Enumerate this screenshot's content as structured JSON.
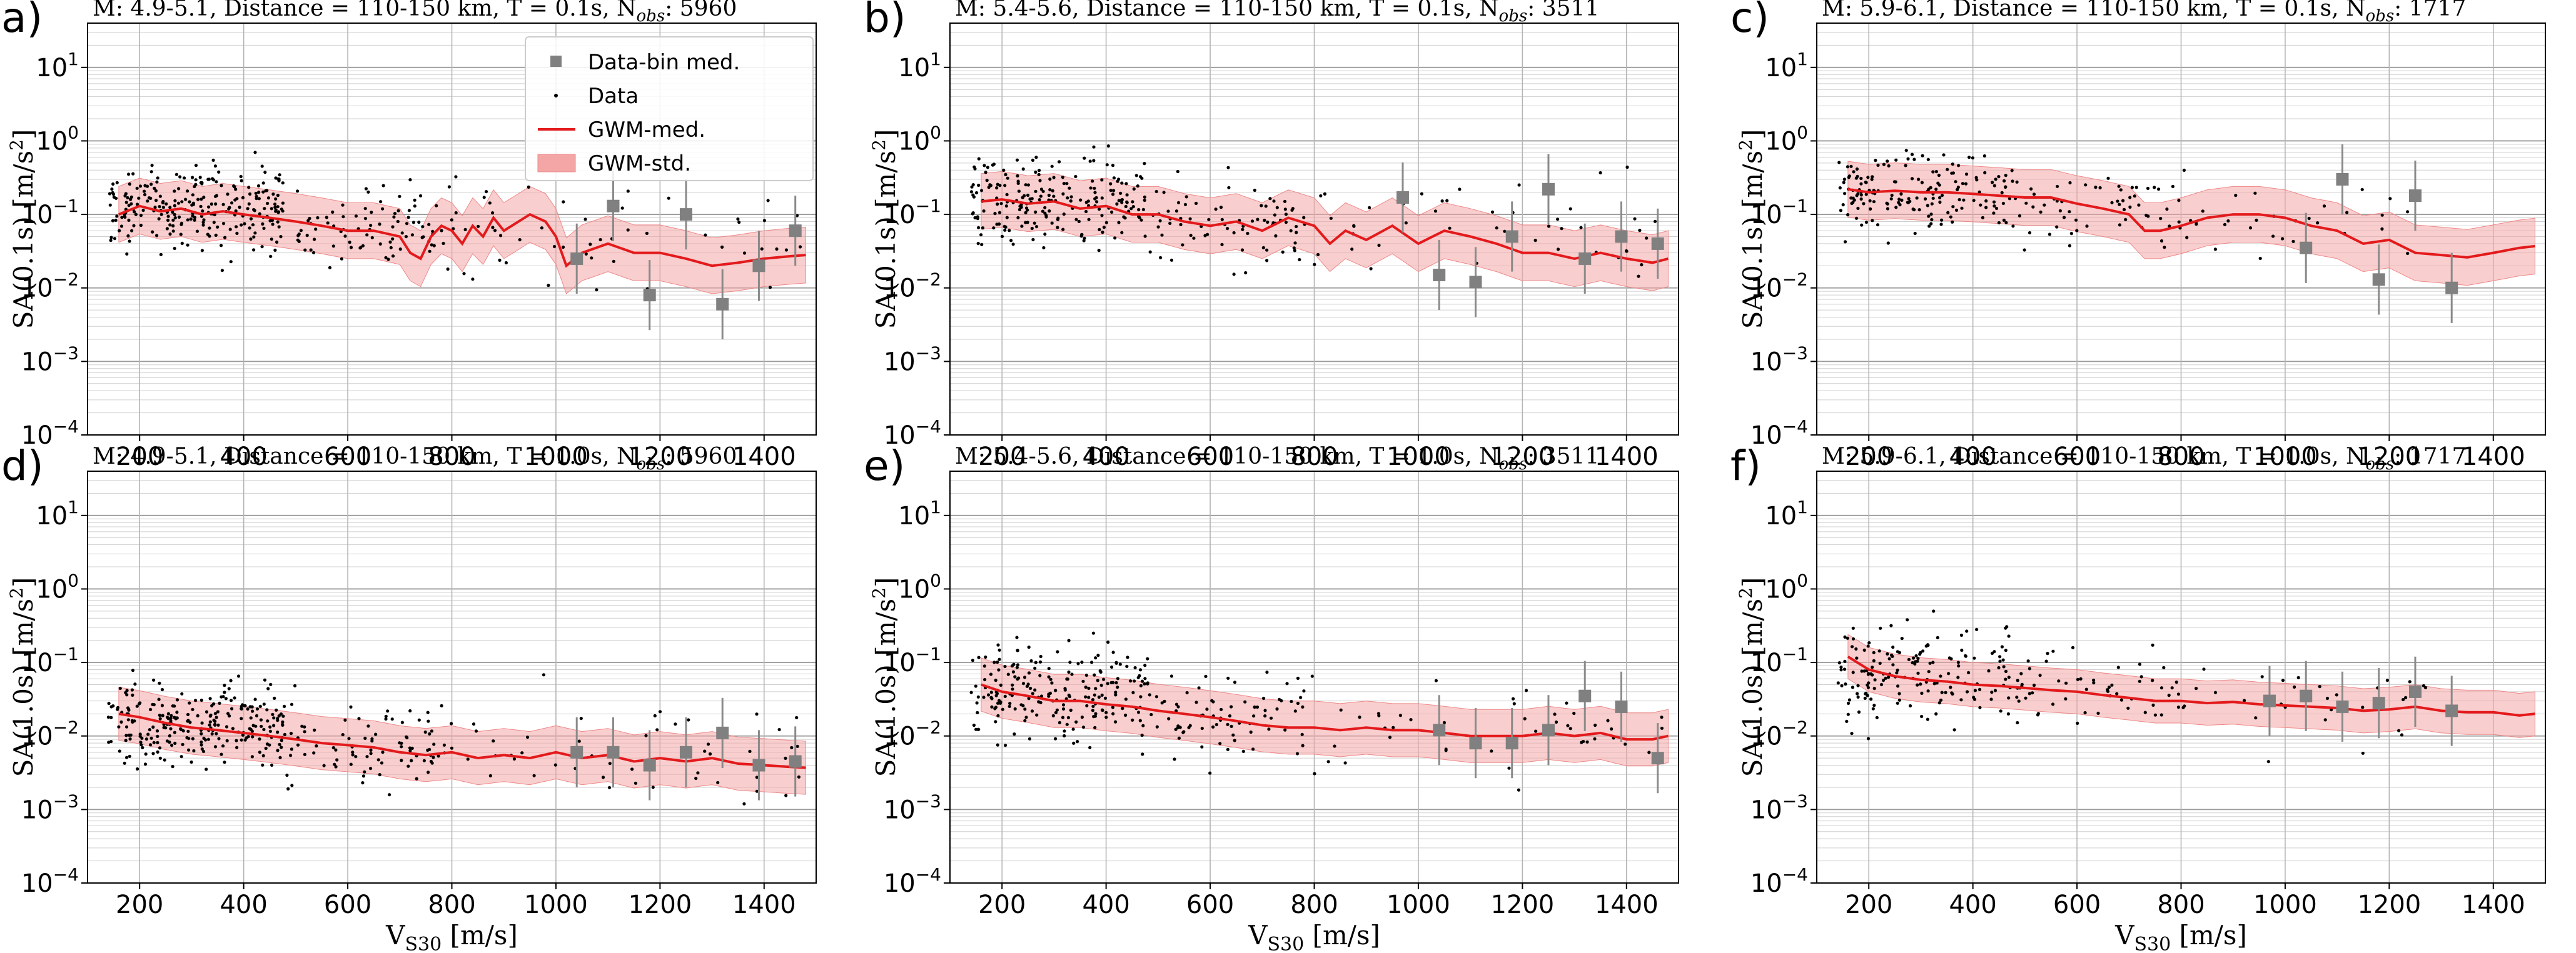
{
  "figure": {
    "legend": {
      "items": [
        {
          "label": "Data-bin med.",
          "kind": "square",
          "color": "#808080"
        },
        {
          "label": "Data",
          "kind": "dot",
          "color": "#000000"
        },
        {
          "label": "GWM-med.",
          "kind": "line",
          "color": "#e31a1c"
        },
        {
          "label": "GWM-std.",
          "kind": "band",
          "color": "#f4a6a6"
        }
      ],
      "placement": "upper-right of panel a"
    },
    "colors": {
      "data": "#000000",
      "bin_median": "#808080",
      "gwm_median": "#e31a1c",
      "gwm_std": "#f4a6a6",
      "grid": "#b0b0b0"
    }
  },
  "chart_data": [
    {
      "id": "a",
      "letter": "a)",
      "type": "scatter",
      "title": "M: 4.9-5.1,  Distance = 110-150 km, T = 0.1s, N",
      "title_sub": "obs",
      "title_tail": ": 5960",
      "xlabel": "",
      "ylabel": "SA(0.1s) [m/s²]",
      "xlim": [
        100,
        1500
      ],
      "ylim": [
        0.0001,
        40
      ],
      "yscale": "log",
      "grid": true,
      "n_obs": 5960,
      "xticks": [
        200,
        400,
        600,
        800,
        1000,
        1200,
        1400
      ],
      "data_clusters": [
        {
          "x_range": [
            140,
            480
          ],
          "y_median": 0.12,
          "spread": 0.28,
          "n": 260
        },
        {
          "x_range": [
            480,
            800
          ],
          "y_median": 0.07,
          "spread": 0.3,
          "n": 90
        },
        {
          "x_range": [
            800,
            1480
          ],
          "y_median": 0.06,
          "spread": 0.38,
          "n": 50
        }
      ],
      "gwm_median": [
        [
          160,
          0.1
        ],
        [
          200,
          0.13
        ],
        [
          240,
          0.11
        ],
        [
          280,
          0.12
        ],
        [
          320,
          0.1
        ],
        [
          360,
          0.11
        ],
        [
          400,
          0.1
        ],
        [
          450,
          0.09
        ],
        [
          500,
          0.08
        ],
        [
          550,
          0.07
        ],
        [
          600,
          0.06
        ],
        [
          650,
          0.06
        ],
        [
          700,
          0.05
        ],
        [
          720,
          0.03
        ],
        [
          740,
          0.025
        ],
        [
          760,
          0.05
        ],
        [
          780,
          0.07
        ],
        [
          800,
          0.06
        ],
        [
          820,
          0.04
        ],
        [
          840,
          0.07
        ],
        [
          860,
          0.05
        ],
        [
          880,
          0.09
        ],
        [
          900,
          0.06
        ],
        [
          950,
          0.1
        ],
        [
          980,
          0.08
        ],
        [
          1000,
          0.05
        ],
        [
          1020,
          0.02
        ],
        [
          1050,
          0.03
        ],
        [
          1100,
          0.04
        ],
        [
          1150,
          0.03
        ],
        [
          1200,
          0.03
        ],
        [
          1250,
          0.025
        ],
        [
          1300,
          0.02
        ],
        [
          1350,
          0.022
        ],
        [
          1400,
          0.025
        ],
        [
          1450,
          0.027
        ],
        [
          1480,
          0.028
        ]
      ],
      "gwm_std_ratio": 2.4,
      "bin_medians": [
        [
          1040,
          0.025
        ],
        [
          1110,
          0.13
        ],
        [
          1180,
          0.008
        ],
        [
          1250,
          0.1
        ],
        [
          1320,
          0.006
        ],
        [
          1390,
          0.02
        ],
        [
          1460,
          0.06
        ]
      ]
    },
    {
      "id": "b",
      "letter": "b)",
      "type": "scatter",
      "title": "M: 5.4-5.6,  Distance = 110-150 km, T = 0.1s, N",
      "title_sub": "obs",
      "title_tail": ": 3511",
      "xlabel": "",
      "ylabel": "SA(0.1s) [m/s²]",
      "xlim": [
        100,
        1500
      ],
      "ylim": [
        0.0001,
        40
      ],
      "yscale": "log",
      "grid": true,
      "n_obs": 3511,
      "xticks": [
        200,
        400,
        600,
        800,
        1000,
        1200,
        1400
      ],
      "data_clusters": [
        {
          "x_range": [
            140,
            480
          ],
          "y_median": 0.16,
          "spread": 0.3,
          "n": 220
        },
        {
          "x_range": [
            480,
            800
          ],
          "y_median": 0.08,
          "spread": 0.3,
          "n": 80
        },
        {
          "x_range": [
            800,
            1480
          ],
          "y_median": 0.06,
          "spread": 0.36,
          "n": 45
        }
      ],
      "gwm_median": [
        [
          160,
          0.15
        ],
        [
          200,
          0.16
        ],
        [
          250,
          0.14
        ],
        [
          300,
          0.15
        ],
        [
          350,
          0.12
        ],
        [
          400,
          0.13
        ],
        [
          450,
          0.1
        ],
        [
          500,
          0.1
        ],
        [
          550,
          0.08
        ],
        [
          600,
          0.07
        ],
        [
          650,
          0.08
        ],
        [
          700,
          0.06
        ],
        [
          750,
          0.09
        ],
        [
          800,
          0.07
        ],
        [
          830,
          0.04
        ],
        [
          860,
          0.06
        ],
        [
          900,
          0.045
        ],
        [
          950,
          0.07
        ],
        [
          1000,
          0.04
        ],
        [
          1050,
          0.06
        ],
        [
          1100,
          0.05
        ],
        [
          1150,
          0.04
        ],
        [
          1200,
          0.03
        ],
        [
          1250,
          0.03
        ],
        [
          1300,
          0.025
        ],
        [
          1350,
          0.03
        ],
        [
          1400,
          0.025
        ],
        [
          1450,
          0.022
        ],
        [
          1480,
          0.025
        ]
      ],
      "gwm_std_ratio": 2.4,
      "bin_medians": [
        [
          970,
          0.17
        ],
        [
          1040,
          0.015
        ],
        [
          1110,
          0.012
        ],
        [
          1180,
          0.05
        ],
        [
          1250,
          0.22
        ],
        [
          1320,
          0.025
        ],
        [
          1390,
          0.05
        ],
        [
          1460,
          0.04
        ]
      ]
    },
    {
      "id": "c",
      "letter": "c)",
      "type": "scatter",
      "title": "M: 5.9-6.1,  Distance = 110-150 km, T = 0.1s, N",
      "title_sub": "obs",
      "title_tail": ": 1717",
      "xlabel": "",
      "ylabel": "SA(0.1s) [m/s²]",
      "xlim": [
        100,
        1500
      ],
      "ylim": [
        0.0001,
        40
      ],
      "yscale": "log",
      "grid": true,
      "n_obs": 1717,
      "xticks": [
        200,
        400,
        600,
        800,
        1000,
        1200,
        1400
      ],
      "data_clusters": [
        {
          "x_range": [
            140,
            480
          ],
          "y_median": 0.2,
          "spread": 0.27,
          "n": 170
        },
        {
          "x_range": [
            480,
            800
          ],
          "y_median": 0.12,
          "spread": 0.28,
          "n": 60
        },
        {
          "x_range": [
            800,
            1300
          ],
          "y_median": 0.09,
          "spread": 0.3,
          "n": 30
        }
      ],
      "gwm_median": [
        [
          160,
          0.22
        ],
        [
          200,
          0.2
        ],
        [
          250,
          0.21
        ],
        [
          300,
          0.2
        ],
        [
          350,
          0.2
        ],
        [
          400,
          0.19
        ],
        [
          450,
          0.18
        ],
        [
          500,
          0.17
        ],
        [
          550,
          0.17
        ],
        [
          600,
          0.14
        ],
        [
          650,
          0.12
        ],
        [
          700,
          0.1
        ],
        [
          730,
          0.06
        ],
        [
          760,
          0.06
        ],
        [
          800,
          0.07
        ],
        [
          850,
          0.09
        ],
        [
          900,
          0.1
        ],
        [
          950,
          0.1
        ],
        [
          1000,
          0.09
        ],
        [
          1050,
          0.07
        ],
        [
          1100,
          0.06
        ],
        [
          1150,
          0.04
        ],
        [
          1200,
          0.045
        ],
        [
          1250,
          0.03
        ],
        [
          1300,
          0.028
        ],
        [
          1350,
          0.026
        ],
        [
          1400,
          0.03
        ],
        [
          1450,
          0.035
        ],
        [
          1480,
          0.037
        ]
      ],
      "gwm_std_ratio": 2.4,
      "bin_medians": [
        [
          1040,
          0.035
        ],
        [
          1110,
          0.3
        ],
        [
          1180,
          0.013
        ],
        [
          1250,
          0.18
        ],
        [
          1320,
          0.01
        ]
      ]
    },
    {
      "id": "d",
      "letter": "d)",
      "type": "scatter",
      "title": "M: 4.9-5.1,  Distance = 110-150 km, T = 1.0s, N",
      "title_sub": "obs",
      "title_tail": ": 5960",
      "xlabel": "V_S30 [m/s]",
      "ylabel": "SA(1.0s) [m/s²]",
      "xlim": [
        100,
        1500
      ],
      "ylim": [
        0.0001,
        40
      ],
      "yscale": "log",
      "grid": true,
      "n_obs": 5960,
      "xticks": [
        200,
        400,
        600,
        800,
        1000,
        1200,
        1400
      ],
      "data_clusters": [
        {
          "x_range": [
            140,
            480
          ],
          "y_median": 0.015,
          "spread": 0.3,
          "n": 260
        },
        {
          "x_range": [
            480,
            800
          ],
          "y_median": 0.008,
          "spread": 0.3,
          "n": 90
        },
        {
          "x_range": [
            800,
            1480
          ],
          "y_median": 0.006,
          "spread": 0.35,
          "n": 50
        }
      ],
      "gwm_median": [
        [
          160,
          0.02
        ],
        [
          200,
          0.018
        ],
        [
          250,
          0.015
        ],
        [
          300,
          0.013
        ],
        [
          350,
          0.012
        ],
        [
          400,
          0.011
        ],
        [
          450,
          0.01
        ],
        [
          500,
          0.009
        ],
        [
          550,
          0.008
        ],
        [
          600,
          0.0075
        ],
        [
          650,
          0.007
        ],
        [
          700,
          0.006
        ],
        [
          750,
          0.0055
        ],
        [
          800,
          0.006
        ],
        [
          850,
          0.005
        ],
        [
          900,
          0.0055
        ],
        [
          950,
          0.005
        ],
        [
          1000,
          0.006
        ],
        [
          1050,
          0.005
        ],
        [
          1100,
          0.0055
        ],
        [
          1150,
          0.0045
        ],
        [
          1200,
          0.005
        ],
        [
          1250,
          0.0045
        ],
        [
          1300,
          0.005
        ],
        [
          1350,
          0.0042
        ],
        [
          1400,
          0.004
        ],
        [
          1450,
          0.0038
        ],
        [
          1480,
          0.0037
        ]
      ],
      "gwm_std_ratio": 2.3,
      "bin_medians": [
        [
          1040,
          0.006
        ],
        [
          1110,
          0.006
        ],
        [
          1180,
          0.004
        ],
        [
          1250,
          0.006
        ],
        [
          1320,
          0.011
        ],
        [
          1390,
          0.004
        ],
        [
          1460,
          0.0045
        ]
      ]
    },
    {
      "id": "e",
      "letter": "e)",
      "type": "scatter",
      "title": "M: 5.4-5.6,  Distance = 110-150 km, T = 1.0s, N",
      "title_sub": "obs",
      "title_tail": ": 3511",
      "xlabel": "V_S30 [m/s]",
      "ylabel": "SA(1.0s) [m/s²]",
      "xlim": [
        100,
        1500
      ],
      "ylim": [
        0.0001,
        40
      ],
      "yscale": "log",
      "grid": true,
      "n_obs": 3511,
      "xticks": [
        200,
        400,
        600,
        800,
        1000,
        1200,
        1400
      ],
      "data_clusters": [
        {
          "x_range": [
            140,
            480
          ],
          "y_median": 0.04,
          "spread": 0.32,
          "n": 220
        },
        {
          "x_range": [
            480,
            800
          ],
          "y_median": 0.02,
          "spread": 0.3,
          "n": 80
        },
        {
          "x_range": [
            800,
            1480
          ],
          "y_median": 0.012,
          "spread": 0.3,
          "n": 45
        }
      ],
      "gwm_median": [
        [
          160,
          0.05
        ],
        [
          200,
          0.04
        ],
        [
          250,
          0.035
        ],
        [
          300,
          0.03
        ],
        [
          350,
          0.03
        ],
        [
          400,
          0.027
        ],
        [
          450,
          0.025
        ],
        [
          500,
          0.022
        ],
        [
          550,
          0.02
        ],
        [
          600,
          0.018
        ],
        [
          650,
          0.016
        ],
        [
          700,
          0.014
        ],
        [
          750,
          0.013
        ],
        [
          800,
          0.013
        ],
        [
          850,
          0.012
        ],
        [
          900,
          0.013
        ],
        [
          950,
          0.012
        ],
        [
          1000,
          0.012
        ],
        [
          1050,
          0.011
        ],
        [
          1100,
          0.01
        ],
        [
          1150,
          0.01
        ],
        [
          1200,
          0.01
        ],
        [
          1250,
          0.011
        ],
        [
          1300,
          0.01
        ],
        [
          1350,
          0.011
        ],
        [
          1400,
          0.009
        ],
        [
          1450,
          0.009
        ],
        [
          1480,
          0.01
        ]
      ],
      "gwm_std_ratio": 2.3,
      "bin_medians": [
        [
          1040,
          0.012
        ],
        [
          1110,
          0.008
        ],
        [
          1180,
          0.008
        ],
        [
          1250,
          0.012
        ],
        [
          1320,
          0.035
        ],
        [
          1390,
          0.025
        ],
        [
          1460,
          0.005
        ]
      ]
    },
    {
      "id": "f",
      "letter": "f)",
      "type": "scatter",
      "title": "M: 5.9-6.1,  Distance = 110-150 km, T = 1.0s, N",
      "title_sub": "obs",
      "title_tail": ": 1717",
      "xlabel": "V_S30 [m/s]",
      "ylabel": "SA(1.0s) [m/s²]",
      "xlim": [
        100,
        1500
      ],
      "ylim": [
        0.0001,
        40
      ],
      "yscale": "log",
      "grid": true,
      "n_obs": 1717,
      "xticks": [
        200,
        400,
        600,
        800,
        1000,
        1200,
        1400
      ],
      "data_clusters": [
        {
          "x_range": [
            140,
            480
          ],
          "y_median": 0.07,
          "spread": 0.3,
          "n": 170
        },
        {
          "x_range": [
            480,
            800
          ],
          "y_median": 0.04,
          "spread": 0.28,
          "n": 60
        },
        {
          "x_range": [
            800,
            1300
          ],
          "y_median": 0.03,
          "spread": 0.3,
          "n": 30
        }
      ],
      "gwm_median": [
        [
          160,
          0.12
        ],
        [
          200,
          0.08
        ],
        [
          250,
          0.065
        ],
        [
          300,
          0.058
        ],
        [
          350,
          0.055
        ],
        [
          400,
          0.05
        ],
        [
          450,
          0.048
        ],
        [
          500,
          0.045
        ],
        [
          550,
          0.042
        ],
        [
          600,
          0.04
        ],
        [
          650,
          0.036
        ],
        [
          700,
          0.033
        ],
        [
          750,
          0.03
        ],
        [
          800,
          0.03
        ],
        [
          850,
          0.028
        ],
        [
          900,
          0.029
        ],
        [
          950,
          0.027
        ],
        [
          1000,
          0.026
        ],
        [
          1050,
          0.025
        ],
        [
          1100,
          0.024
        ],
        [
          1150,
          0.022
        ],
        [
          1200,
          0.023
        ],
        [
          1250,
          0.025
        ],
        [
          1300,
          0.022
        ],
        [
          1350,
          0.021
        ],
        [
          1400,
          0.021
        ],
        [
          1450,
          0.019
        ],
        [
          1480,
          0.02
        ]
      ],
      "gwm_std_ratio": 2.0,
      "bin_medians": [
        [
          970,
          0.03
        ],
        [
          1040,
          0.035
        ],
        [
          1110,
          0.025
        ],
        [
          1180,
          0.028
        ],
        [
          1250,
          0.04
        ],
        [
          1320,
          0.022
        ]
      ]
    }
  ]
}
